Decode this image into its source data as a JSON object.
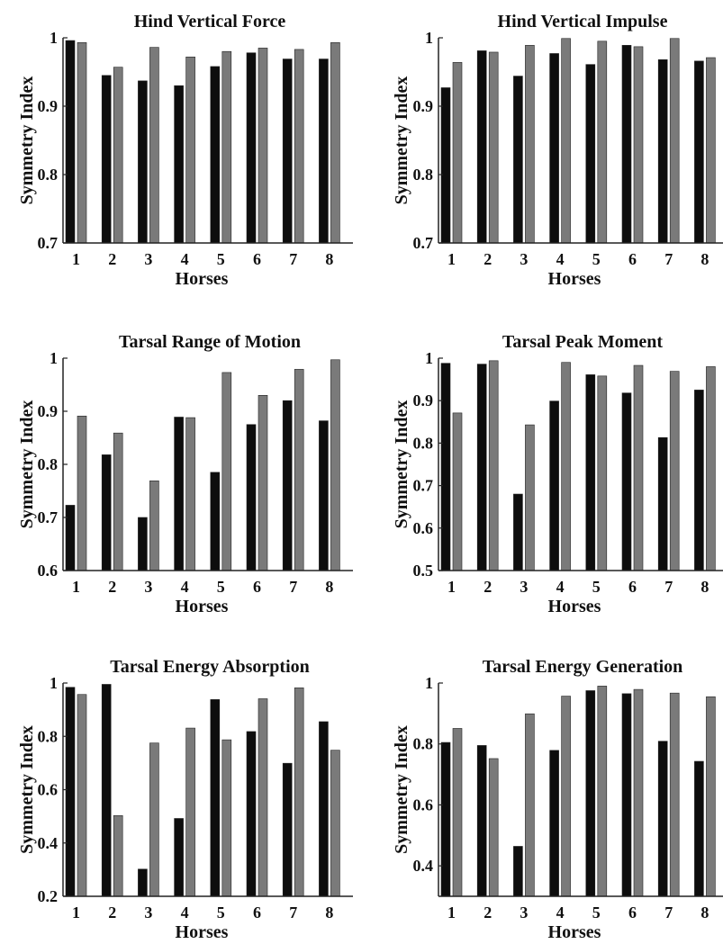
{
  "colors": {
    "series_dark": "#0d0d0d",
    "series_gray": "#7a7a7a",
    "axis": "#222222",
    "background": "#ffffff"
  },
  "chart_data": [
    {
      "type": "bar",
      "title": "Hind Vertical Force",
      "xlabel": "Horses",
      "ylabel": "Symmetry Index",
      "categories": [
        "1",
        "2",
        "3",
        "4",
        "5",
        "6",
        "7",
        "8"
      ],
      "ylim": [
        0.7,
        1.0
      ],
      "yticks": [
        "0.7",
        "0.8",
        "0.9",
        "1"
      ],
      "grid": false,
      "series": [
        {
          "values": [
            0.996,
            0.945,
            0.937,
            0.93,
            0.958,
            0.978,
            0.969,
            0.969
          ]
        },
        {
          "values": [
            0.993,
            0.957,
            0.986,
            0.972,
            0.98,
            0.985,
            0.983,
            0.993
          ]
        }
      ]
    },
    {
      "type": "bar",
      "title": "Hind Vertical Impulse",
      "xlabel": "Horses",
      "ylabel": "Symmetry Index",
      "categories": [
        "1",
        "2",
        "3",
        "4",
        "5",
        "6",
        "7",
        "8"
      ],
      "ylim": [
        0.7,
        1.0
      ],
      "yticks": [
        "0.7",
        "0.8",
        "0.9",
        "1"
      ],
      "grid": false,
      "series": [
        {
          "values": [
            0.927,
            0.981,
            0.944,
            0.977,
            0.961,
            0.989,
            0.968,
            0.966
          ]
        },
        {
          "values": [
            0.964,
            0.979,
            0.989,
            0.999,
            0.995,
            0.987,
            0.999,
            0.971
          ]
        }
      ]
    },
    {
      "type": "bar",
      "title": "Tarsal Range of Motion",
      "xlabel": "Horses",
      "ylabel": "Symmetry Index",
      "categories": [
        "1",
        "2",
        "3",
        "4",
        "5",
        "6",
        "7",
        "8"
      ],
      "ylim": [
        0.6,
        1.0
      ],
      "yticks": [
        "0.6",
        "0.7",
        "0.8",
        "0.9",
        "1"
      ],
      "grid": false,
      "series": [
        {
          "values": [
            0.723,
            0.818,
            0.7,
            0.889,
            0.785,
            0.875,
            0.92,
            0.882
          ]
        },
        {
          "values": [
            0.891,
            0.859,
            0.769,
            0.888,
            0.973,
            0.93,
            0.979,
            0.997
          ]
        }
      ]
    },
    {
      "type": "bar",
      "title": "Tarsal Peak Moment",
      "xlabel": "Horses",
      "ylabel": "Symmetry Index",
      "categories": [
        "1",
        "2",
        "3",
        "4",
        "5",
        "6",
        "7",
        "8"
      ],
      "ylim": [
        0.5,
        1.0
      ],
      "yticks": [
        "0.5",
        "0.6",
        "0.7",
        "0.8",
        "0.9",
        "1"
      ],
      "grid": false,
      "series": [
        {
          "values": [
            0.988,
            0.986,
            0.68,
            0.899,
            0.961,
            0.918,
            0.813,
            0.925
          ]
        },
        {
          "values": [
            0.871,
            0.994,
            0.843,
            0.99,
            0.958,
            0.983,
            0.969,
            0.98
          ]
        }
      ]
    },
    {
      "type": "bar",
      "title": "Tarsal Energy Absorption",
      "xlabel": "Horses",
      "ylabel": "Symmetry Index",
      "categories": [
        "1",
        "2",
        "3",
        "4",
        "5",
        "6",
        "7",
        "8"
      ],
      "ylim": [
        0.2,
        1.0
      ],
      "yticks": [
        "0.2",
        "0.4",
        "0.6",
        "0.8",
        "1"
      ],
      "grid": false,
      "series": [
        {
          "values": [
            0.984,
            0.995,
            0.302,
            0.492,
            0.938,
            0.818,
            0.699,
            0.855
          ]
        },
        {
          "values": [
            0.957,
            0.503,
            0.775,
            0.831,
            0.787,
            0.941,
            0.982,
            0.748
          ]
        }
      ]
    },
    {
      "type": "bar",
      "title": "Tarsal Energy Generation",
      "xlabel": "Horses",
      "ylabel": "Symmetry Index",
      "categories": [
        "1",
        "2",
        "3",
        "4",
        "5",
        "6",
        "7",
        "8"
      ],
      "ylim": [
        0.3,
        1.0
      ],
      "yticks": [
        "0.4",
        "0.6",
        "0.8",
        "1"
      ],
      "grid": false,
      "series": [
        {
          "values": [
            0.805,
            0.795,
            0.464,
            0.779,
            0.975,
            0.965,
            0.809,
            0.743
          ]
        },
        {
          "values": [
            0.851,
            0.752,
            0.899,
            0.957,
            0.99,
            0.979,
            0.967,
            0.955
          ]
        }
      ]
    }
  ]
}
